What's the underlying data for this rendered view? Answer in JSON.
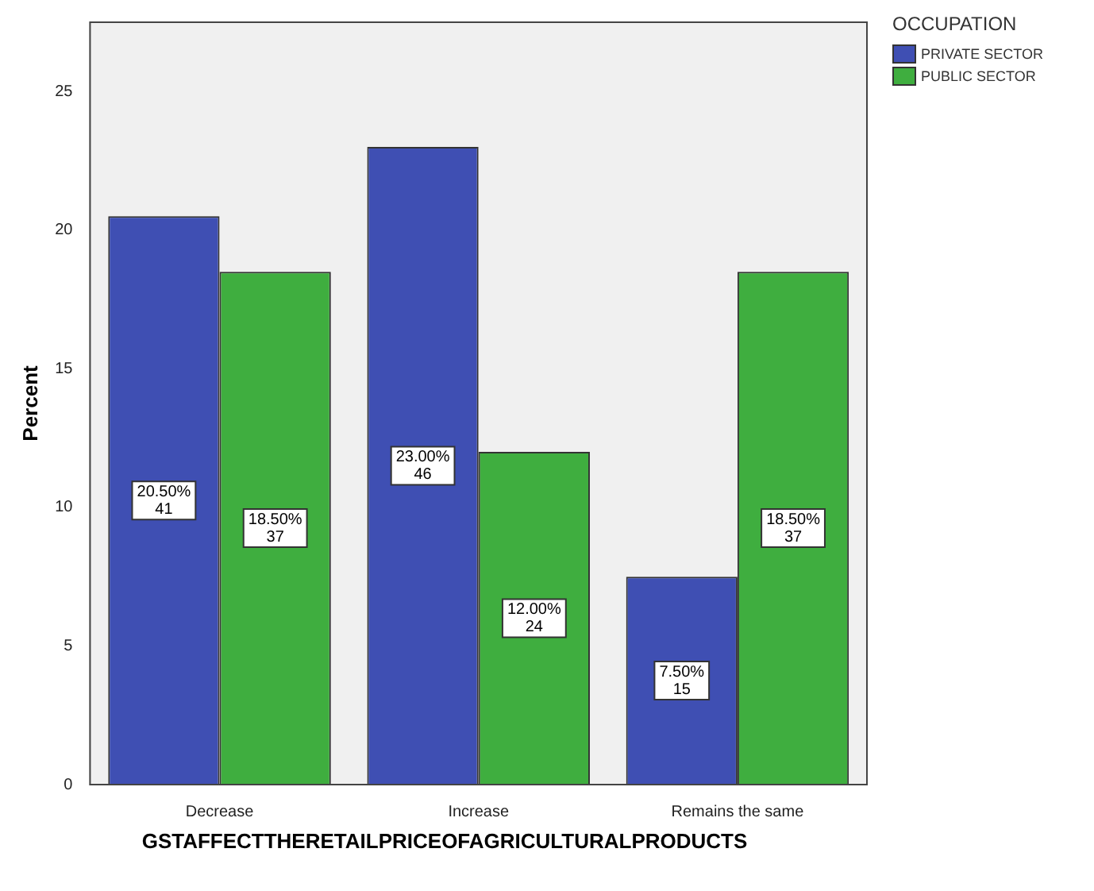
{
  "chart_data": {
    "type": "bar",
    "xlabel": "GSTAFFECTTHERETAILPRICEOFAGRICULTURALPRODUCTS",
    "ylabel": "Percent",
    "legend_title": "OCCUPATION",
    "legend": "top right",
    "grid": false,
    "categories": [
      "Decrease",
      "Increase",
      "Remains the same"
    ],
    "series": [
      {
        "name": "PRIVATE SECTOR",
        "color": "#3f4fb3",
        "values": [
          20.5,
          23,
          7.5
        ],
        "value_labels": [
          "20.50%\n41",
          "23.00%\n46",
          "7.50%\n15"
        ]
      },
      {
        "name": "PUBLIC SECTOR",
        "color": "#3fae3f",
        "values": [
          18.5,
          12,
          18.5
        ],
        "value_labels": [
          "18.50%\n37",
          "12.00%\n24",
          "18.50%\n37"
        ]
      }
    ],
    "ylim": [
      0,
      27.5
    ],
    "yticks": [
      0,
      5,
      10,
      15,
      20,
      25
    ]
  }
}
